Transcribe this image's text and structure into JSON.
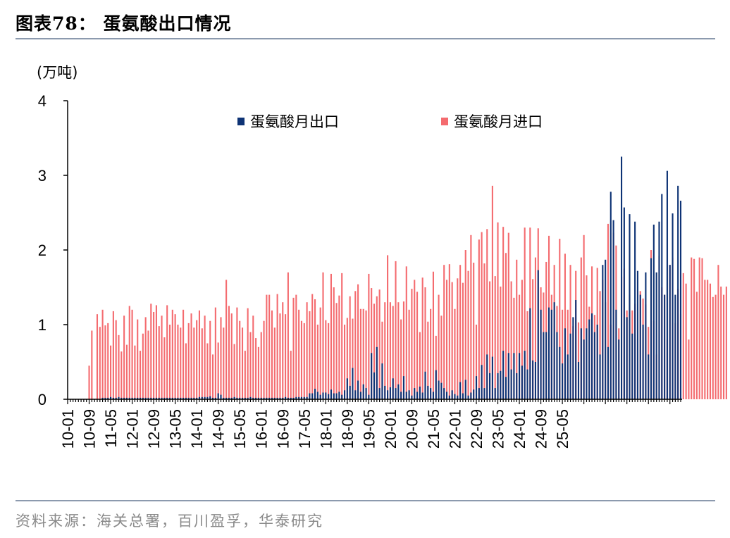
{
  "header": {
    "title": "图表78：  蛋氨酸出口情况"
  },
  "footer": {
    "source": "资料来源：海关总署，百川盈孚，华泰研究"
  },
  "colors": {
    "export": "#0e3375",
    "import": "#f46b6f",
    "rule": "#8c9aae"
  },
  "chart_data": {
    "type": "bar",
    "unit_label": "(万吨)",
    "ylim": [
      0,
      4
    ],
    "yticks": [
      "0",
      "1",
      "2",
      "3",
      "4"
    ],
    "grid": false,
    "legend_position": "top",
    "x_tick_labels": [
      "10-01",
      "10-09",
      "11-05",
      "12-01",
      "12-09",
      "13-05",
      "14-01",
      "14-09",
      "15-05",
      "16-01",
      "16-09",
      "17-05",
      "18-01",
      "18-09",
      "19-05",
      "20-01",
      "20-09",
      "21-05",
      "22-01",
      "22-09",
      "23-05",
      "24-01",
      "24-09",
      "25-05"
    ],
    "x_start": "2010-01",
    "x_end": "2025-05",
    "series": [
      {
        "name": "蛋氨酸月出口",
        "values": [
          0.0,
          0.0,
          0.0,
          0.0,
          0.0,
          0.0,
          0.0,
          0.0,
          0.0,
          0.0,
          0.0,
          0.0,
          0.0,
          0.02,
          0.02,
          0.02,
          0.03,
          0.02,
          0.02,
          0.03,
          0.02,
          0.02,
          0.02,
          0.02,
          0.02,
          0.02,
          0.02,
          0.02,
          0.02,
          0.02,
          0.02,
          0.02,
          0.02,
          0.02,
          0.02,
          0.02,
          0.02,
          0.02,
          0.02,
          0.02,
          0.02,
          0.02,
          0.02,
          0.02,
          0.02,
          0.02,
          0.02,
          0.02,
          0.02,
          0.03,
          0.03,
          0.03,
          0.03,
          0.04,
          0.02,
          0.02,
          0.08,
          0.06,
          0.02,
          0.02,
          0.02,
          0.02,
          0.03,
          0.02,
          0.02,
          0.02,
          0.02,
          0.02,
          0.03,
          0.02,
          0.02,
          0.02,
          0.02,
          0.02,
          0.02,
          0.02,
          0.02,
          0.02,
          0.02,
          0.02,
          0.02,
          0.03,
          0.02,
          0.02,
          0.02,
          0.03,
          0.03,
          0.03,
          0.03,
          0.03,
          0.08,
          0.08,
          0.14,
          0.1,
          0.06,
          0.09,
          0.09,
          0.07,
          0.13,
          0.08,
          0.08,
          0.1,
          0.06,
          0.12,
          0.28,
          0.18,
          0.42,
          0.12,
          0.25,
          0.1,
          0.2,
          0.15,
          0.06,
          0.62,
          0.36,
          0.7,
          0.15,
          0.48,
          0.18,
          0.12,
          0.16,
          0.28,
          0.15,
          0.2,
          0.1,
          0.31,
          0.1,
          0.12,
          0.05,
          0.15,
          0.1,
          0.17,
          0.09,
          0.37,
          0.18,
          0.15,
          0.1,
          0.39,
          0.25,
          0.22,
          0.15,
          0.1,
          0.05,
          0.12,
          0.07,
          0.05,
          0.23,
          0.08,
          0.26,
          0.05,
          0.09,
          0.13,
          0.31,
          0.15,
          0.46,
          0.15,
          0.6,
          0.35,
          0.57,
          0.15,
          0.35,
          0.38,
          0.65,
          0.3,
          0.62,
          0.4,
          0.62,
          0.35,
          0.62,
          0.45,
          0.65,
          0.4,
          1.22,
          0.52,
          0.5,
          1.73,
          1.2,
          0.9,
          0.9,
          1.23,
          1.2,
          1.3,
          0.9,
          0.7,
          0.48,
          0.95,
          0.6,
          0.88,
          1.1,
          1.33,
          0.5,
          0.95,
          0.8,
          0.95,
          1.07,
          1.15,
          0.9,
          1.0,
          0.6,
          1.8,
          1.87,
          0.7,
          2.78,
          2.4,
          1.2,
          0.8,
          3.25,
          2.57,
          1.1,
          2.48,
          0.88,
          2.38,
          1.72,
          1.4,
          1.0,
          1.7,
          0.6,
          1.89,
          2.34,
          1.7,
          2.38,
          2.75,
          1.4,
          3.06,
          1.8,
          2.49,
          1.4,
          2.86,
          2.66
        ]
      },
      {
        "name": "蛋氨酸月进口",
        "values": [
          0.0,
          0.0,
          0.0,
          0.0,
          0.0,
          0.0,
          0.0,
          0.0,
          0.45,
          0.92,
          0.0,
          1.14,
          0.97,
          1.2,
          0.99,
          1.02,
          0.72,
          1.18,
          1.06,
          0.86,
          0.64,
          1.12,
          0.73,
          1.25,
          1.2,
          0.72,
          1.07,
          0.65,
          0.88,
          1.1,
          0.92,
          1.28,
          1.17,
          1.26,
          0.98,
          1.12,
          0.83,
          1.26,
          1.0,
          1.2,
          1.14,
          1.0,
          0.96,
          1.2,
          0.75,
          1.02,
          1.15,
          0.96,
          1.06,
          1.19,
          0.95,
          1.12,
          0.75,
          1.05,
          0.6,
          1.23,
          0.76,
          1.1,
          0.96,
          1.6,
          1.25,
          1.15,
          0.74,
          1.23,
          1.05,
          0.96,
          0.65,
          1.22,
          0.9,
          1.12,
          0.82,
          0.7,
          0.9,
          1.05,
          1.4,
          1.4,
          1.19,
          0.96,
          1.41,
          1.15,
          1.3,
          1.14,
          1.7,
          0.65,
          1.36,
          1.4,
          1.2,
          1.05,
          1.02,
          1.3,
          1.18,
          1.41,
          1.34,
          1.0,
          1.23,
          1.7,
          1.06,
          1.02,
          1.68,
          1.5,
          1.29,
          1.39,
          1.69,
          1.0,
          1.09,
          1.38,
          1.08,
          1.45,
          1.54,
          1.21,
          1.21,
          1.19,
          1.68,
          1.49,
          1.28,
          1.38,
          1.47,
          1.04,
          1.3,
          1.93,
          1.3,
          1.25,
          1.85,
          1.3,
          1.07,
          1.31,
          1.78,
          1.2,
          1.48,
          1.6,
          1.44,
          0.9,
          1.63,
          1.5,
          1.04,
          1.21,
          1.71,
          0.85,
          1.4,
          1.12,
          1.8,
          1.6,
          1.81,
          1.57,
          1.21,
          1.62,
          1.8,
          1.56,
          2.0,
          1.72,
          2.2,
          1.83,
          1.0,
          2.14,
          2.24,
          1.82,
          2.28,
          1.58,
          2.86,
          1.65,
          2.37,
          1.51,
          2.31,
          1.96,
          2.23,
          1.58,
          1.36,
          1.87,
          1.4,
          1.6,
          2.3,
          1.18,
          2.3,
          1.61,
          1.9,
          2.29,
          1.5,
          1.43,
          1.84,
          2.19,
          1.4,
          1.8,
          1.25,
          2.15,
          1.2,
          1.95,
          1.2,
          1.8,
          0.98,
          1.72,
          1.03,
          1.9,
          2.2,
          1.66,
          1.24,
          1.78,
          1.13,
          1.76,
          1.45,
          1.6,
          1.3,
          2.35,
          1.0,
          2.23,
          2.06,
          0.95,
          1.64,
          1.75,
          1.19,
          1.4,
          1.19,
          1.28,
          0.8,
          1.45,
          1.35,
          1.27,
          0.97,
          2.0,
          1.05,
          0.6,
          1.92,
          1.5,
          1.4,
          0.8,
          1.8,
          1.9,
          1.02,
          1.48,
          1.14,
          1.69,
          1.55,
          0.8,
          1.9,
          1.88,
          1.44,
          1.9,
          1.89,
          1.6,
          1.6,
          1.55,
          1.37,
          1.4,
          1.8,
          1.51,
          1.4,
          1.51
        ]
      }
    ]
  }
}
